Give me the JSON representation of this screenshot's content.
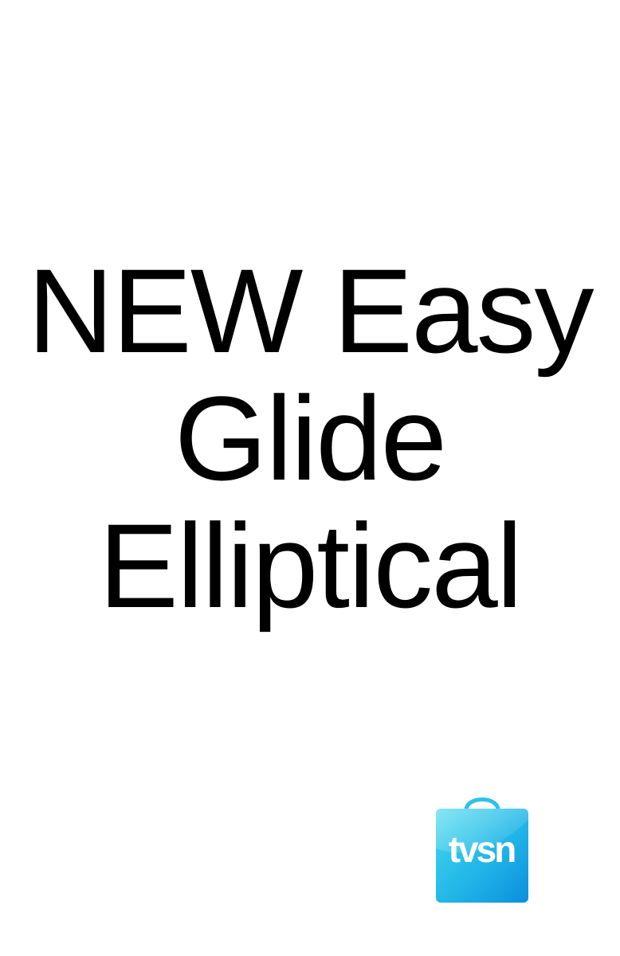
{
  "headline": {
    "line1": "NEW Easy",
    "line2": "Glide",
    "line3": "Elliptical"
  },
  "logo": {
    "icon": "shopping-bag-icon",
    "text": "tvsn",
    "colors": {
      "light": "#3fd0ea",
      "dark": "#0a9ee0",
      "text": "#ffffff"
    }
  }
}
